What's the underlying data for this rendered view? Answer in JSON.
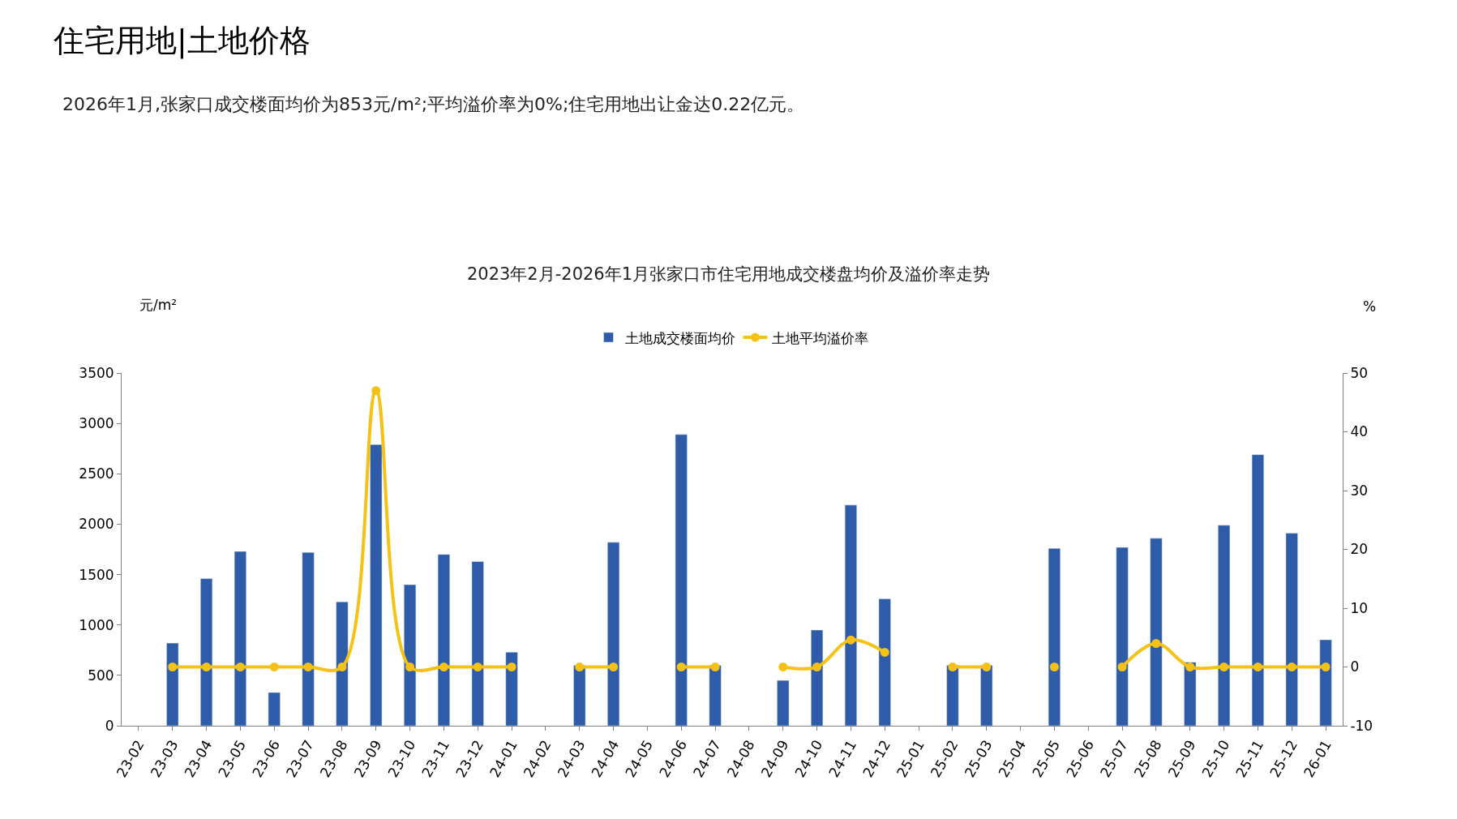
{
  "chart_data": {
    "type": "bar",
    "title": "2023年2月-2026年1月张家口市住宅用地成交楼盘均价及溢价率走势",
    "annotations": [
      "住宅用地|土地价格",
      "2026年1月,张家口成交楼面均价为853元/m²;平均溢价率为0%;住宅用地出让金达0.22亿元。"
    ],
    "ylabel": "元/m²",
    "y2label": "%",
    "categories": [
      "23-02",
      "23-03",
      "23-04",
      "23-05",
      "23-06",
      "23-07",
      "23-08",
      "23-09",
      "23-10",
      "23-11",
      "23-12",
      "24-01",
      "24-02",
      "24-03",
      "24-04",
      "24-05",
      "24-06",
      "24-07",
      "24-08",
      "24-09",
      "24-10",
      "24-11",
      "24-12",
      "25-01",
      "25-02",
      "25-03",
      "25-04",
      "25-05",
      "25-06",
      "25-07",
      "25-08",
      "25-09",
      "25-10",
      "25-11",
      "25-12",
      "26-01"
    ],
    "series": [
      {
        "name": "土地成交楼面均价",
        "color": "#2e5ca8",
        "values": [
          null,
          820,
          1460,
          1730,
          330,
          1720,
          1230,
          2790,
          1400,
          1700,
          1630,
          730,
          null,
          600,
          1820,
          null,
          2890,
          600,
          null,
          450,
          950,
          2190,
          1260,
          null,
          600,
          600,
          null,
          1760,
          null,
          1770,
          1860,
          630,
          1990,
          2690,
          1910,
          853
        ]
      },
      {
        "name": "土地平均溢价率",
        "type": "line",
        "axis": "y2",
        "color": "#f5c115",
        "marker": "circle",
        "values": [
          null,
          0,
          0,
          0,
          0,
          0,
          0,
          47,
          0,
          0,
          0,
          0,
          null,
          0,
          0,
          null,
          0,
          0,
          null,
          0,
          0,
          4.6,
          2.5,
          null,
          0,
          0,
          null,
          0,
          null,
          0,
          4,
          0,
          0,
          0,
          0,
          0
        ]
      }
    ],
    "ylim": [
      0,
      3500
    ],
    "yticks": [
      0,
      500,
      1000,
      1500,
      2000,
      2500,
      3000,
      3500
    ],
    "y2lim": [
      -10,
      50
    ],
    "y2ticks": [
      -10,
      0,
      10,
      20,
      30,
      40,
      50
    ],
    "legend": "top"
  }
}
